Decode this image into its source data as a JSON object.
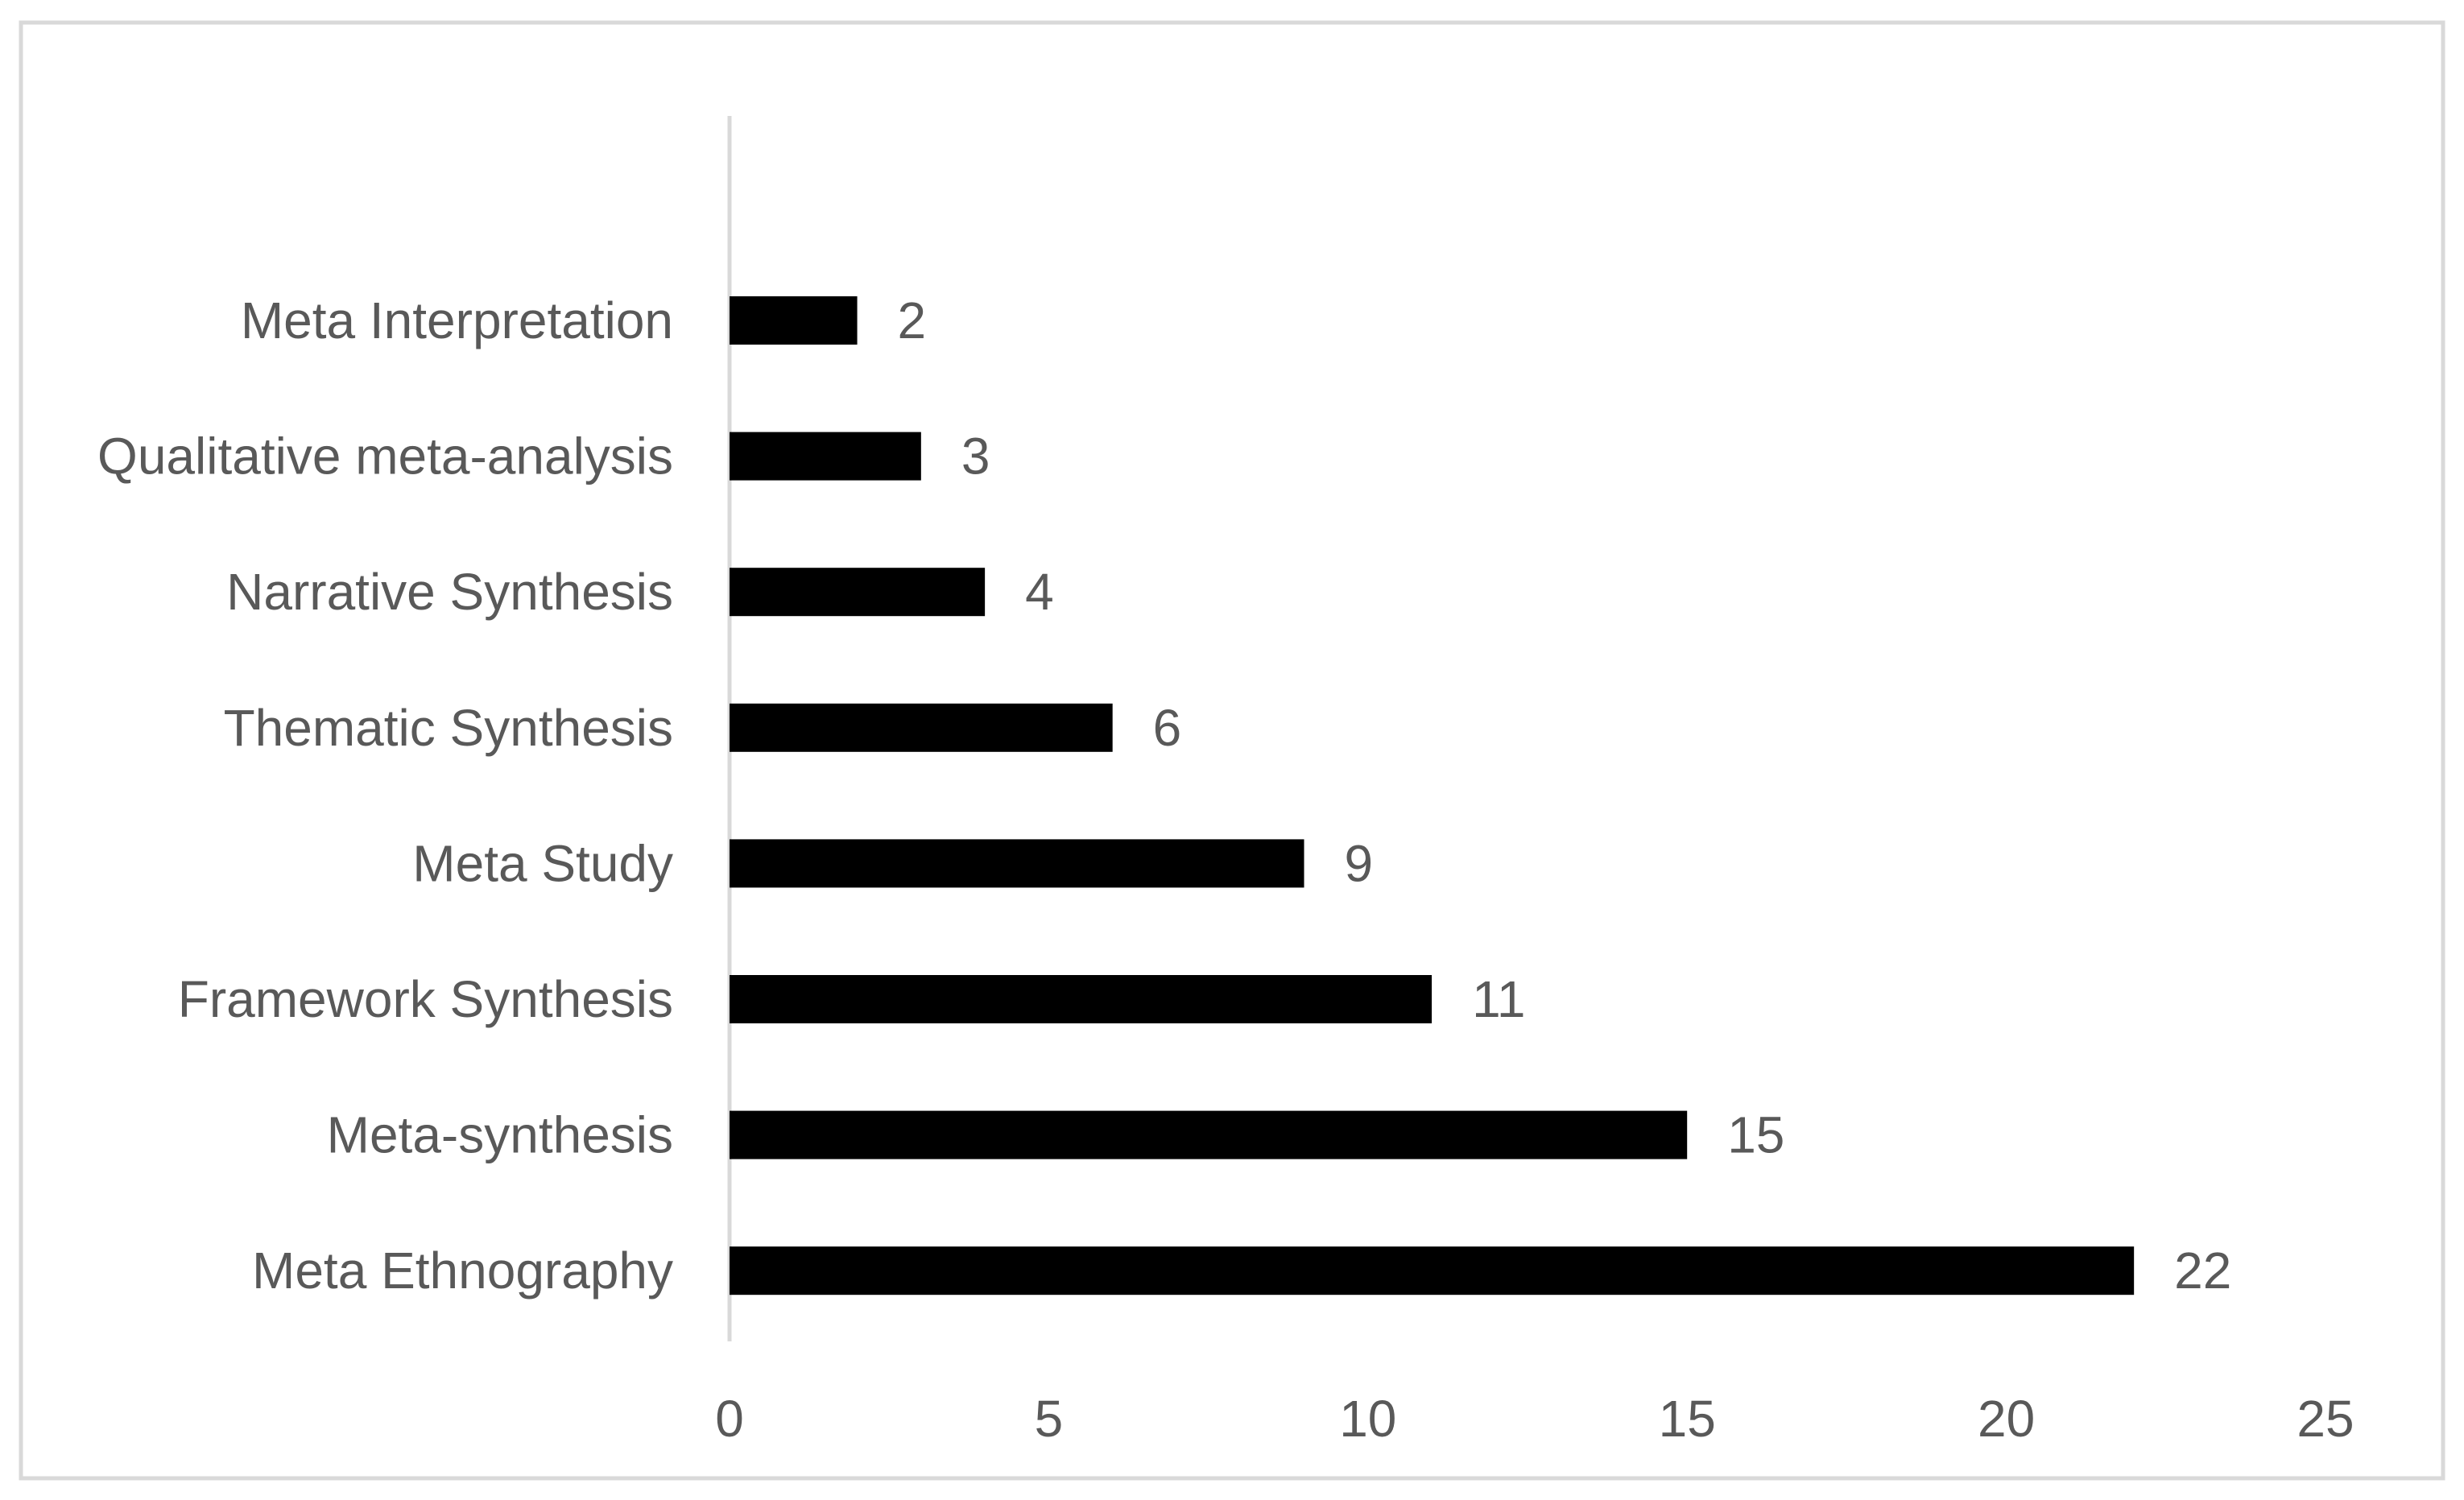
{
  "chart_data": {
    "type": "bar",
    "orientation": "horizontal",
    "title": "",
    "xlabel": "",
    "ylabel": "",
    "categories": [
      "Meta Interpretation",
      "Qualitative meta-analysis",
      "Narrative Synthesis",
      "Thematic Synthesis",
      "Meta Study",
      "Framework Synthesis",
      "Meta-synthesis",
      "Meta Ethnography"
    ],
    "values": [
      2,
      3,
      4,
      6,
      9,
      11,
      15,
      22
    ],
    "xlim": [
      0,
      25
    ],
    "xticks": [
      0,
      5,
      10,
      15,
      20,
      25
    ],
    "tick_labels": [
      "0",
      "5",
      "10",
      "15",
      "20",
      "25"
    ],
    "data_labels": [
      "2",
      "3",
      "4",
      "6",
      "9",
      "11",
      "15",
      "22"
    ],
    "grid": false,
    "legend": "none",
    "colors": {
      "bar": "#000000",
      "text": "#595959",
      "axis": "#d9d9d9",
      "frame": "#d9d9d9",
      "background": "#ffffff"
    }
  }
}
